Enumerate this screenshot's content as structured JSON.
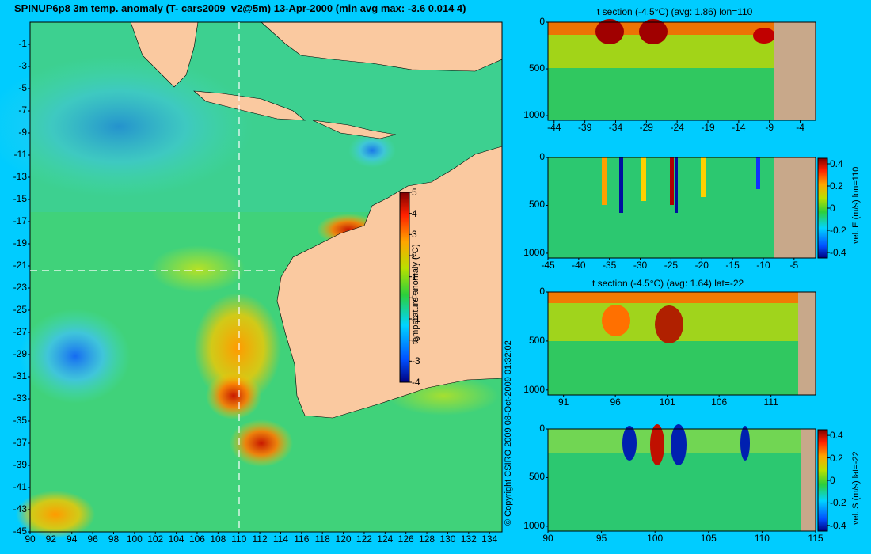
{
  "header": {
    "title": "SPINUP6p8 3m temp. anomaly (T- cars2009_v2@5m) 13-Apr-2000 (min avg max: -3.6 0.014 4)",
    "copyright": "© Copyright CSIRO 2009   08-Oct-2009 01:32:02"
  },
  "colors": {
    "background": "#00ccff",
    "land": "#fac9a0",
    "section_land": "#c8a88a",
    "colormap": [
      "#00007f",
      "#0050ff",
      "#00d4ff",
      "#2ccf3c",
      "#b8e000",
      "#ffa500",
      "#ff2000",
      "#7f0000"
    ]
  },
  "chart_data": [
    {
      "type": "heatmap",
      "title": "SPINUP6p8 3m temp. anomaly (T- cars2009_v2@5m) 13-Apr-2000 (min avg max: -3.6 0.014 4)",
      "x_ticks": [
        "90",
        "92",
        "94",
        "96",
        "98",
        "100",
        "102",
        "104",
        "106",
        "108",
        "110",
        "112",
        "114",
        "116",
        "118",
        "120",
        "122",
        "124",
        "126",
        "128",
        "130",
        "132",
        "134"
      ],
      "y_ticks": [
        "-1",
        "-3",
        "-5",
        "-7",
        "-9",
        "-11",
        "-13",
        "-15",
        "-17",
        "-19",
        "-21",
        "-23",
        "-25",
        "-27",
        "-29",
        "-31",
        "-33",
        "-35",
        "-37",
        "-39",
        "-41",
        "-43",
        "-45"
      ],
      "xlim": [
        90,
        135.2
      ],
      "ylim": [
        -45,
        1
      ],
      "crosshair": {
        "lon": 110,
        "lat": -22
      },
      "stats": {
        "min": -3.6,
        "avg": 0.014,
        "max": 4
      },
      "colorbar": {
        "label": "temperature anomaly (°C)",
        "ticks": [
          "5",
          "4",
          "3",
          "2",
          "1",
          "0",
          "-1",
          "-2",
          "-3",
          "-4"
        ],
        "range": [
          -4,
          5
        ]
      }
    },
    {
      "type": "heatmap",
      "title": "t section (-4.5°C) (avg: 1.86) lon=110",
      "x_ticks": [
        "-44",
        "-39",
        "-34",
        "-29",
        "-24",
        "-19",
        "-14",
        "-9",
        "-4"
      ],
      "y_ticks": [
        "0",
        "500",
        "1000"
      ],
      "xlim": [
        -45,
        -1.5
      ],
      "ylim": [
        1050,
        0
      ],
      "stats": {
        "avg": 1.86
      }
    },
    {
      "type": "heatmap",
      "title": "",
      "x_ticks": [
        "-45",
        "-40",
        "-35",
        "-30",
        "-25",
        "-20",
        "-15",
        "-10",
        "-5"
      ],
      "y_ticks": [
        "0",
        "500",
        "1000"
      ],
      "xlim": [
        -45,
        -1.5
      ],
      "ylim": [
        1050,
        0
      ],
      "colorbar": {
        "label": "vel. E (m/s) lon=110",
        "ticks": [
          "0.4",
          "0.2",
          "0",
          "-0.2",
          "-0.4"
        ],
        "range": [
          -0.45,
          0.45
        ]
      }
    },
    {
      "type": "heatmap",
      "title": "t section (-4.5°C) (avg: 1.64) lat=-22",
      "x_ticks": [
        "91",
        "96",
        "101",
        "106",
        "111"
      ],
      "y_ticks": [
        "0",
        "500",
        "1000"
      ],
      "xlim": [
        89.5,
        115.3
      ],
      "ylim": [
        1050,
        0
      ],
      "stats": {
        "avg": 1.64
      }
    },
    {
      "type": "heatmap",
      "title": "",
      "x_ticks": [
        "90",
        "95",
        "100",
        "105",
        "110",
        "115"
      ],
      "y_ticks": [
        "0",
        "500",
        "1000"
      ],
      "xlim": [
        90,
        115
      ],
      "ylim": [
        1050,
        0
      ],
      "colorbar": {
        "label": "vel. S (m/s) lat=-22",
        "ticks": [
          "0.4",
          "0.2",
          "0",
          "-0.2",
          "-0.4"
        ],
        "range": [
          -0.45,
          0.45
        ]
      }
    }
  ]
}
